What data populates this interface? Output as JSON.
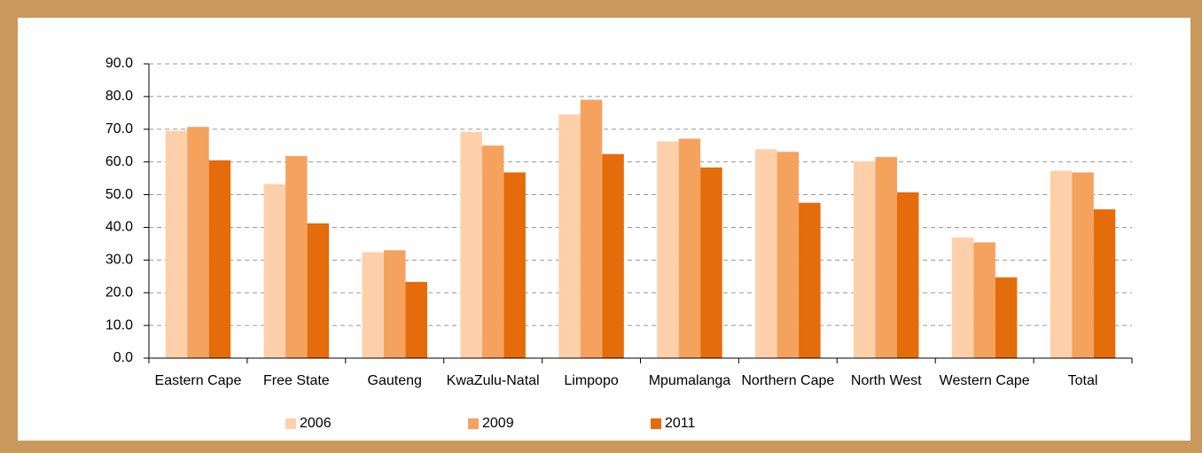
{
  "chart_data": {
    "type": "bar",
    "categories": [
      "Eastern Cape",
      "Free State",
      "Gauteng",
      "KwaZulu-Natal",
      "Limpopo",
      "Mpumalanga",
      "Northern Cape",
      "North West",
      "Western Cape",
      "Total"
    ],
    "series": [
      {
        "name": "2006",
        "color": "#fdd0aa",
        "values": [
          69.5,
          53.2,
          32.4,
          69.2,
          74.5,
          66.3,
          63.9,
          60.2,
          36.9,
          57.3
        ]
      },
      {
        "name": "2009",
        "color": "#f5a25e",
        "values": [
          70.7,
          61.8,
          33.0,
          65.0,
          79.0,
          67.1,
          63.1,
          61.5,
          35.4,
          56.8
        ]
      },
      {
        "name": "2011",
        "color": "#e46c0a",
        "values": [
          60.5,
          41.2,
          23.3,
          56.8,
          62.4,
          58.3,
          47.5,
          50.7,
          24.7,
          45.5
        ]
      }
    ],
    "ylim": [
      0,
      90
    ],
    "yticks": [
      {
        "value": 0,
        "label": "0.0"
      },
      {
        "value": 10,
        "label": "10.0"
      },
      {
        "value": 20,
        "label": "20.0"
      },
      {
        "value": 30,
        "label": "30.0"
      },
      {
        "value": 40,
        "label": "40.0"
      },
      {
        "value": 50,
        "label": "50.0"
      },
      {
        "value": 60,
        "label": "60.0"
      },
      {
        "value": 70,
        "label": "70.0"
      },
      {
        "value": 80,
        "label": "80.0"
      },
      {
        "value": 90,
        "label": "90.0"
      }
    ],
    "grid": true,
    "legend": "bottom"
  }
}
